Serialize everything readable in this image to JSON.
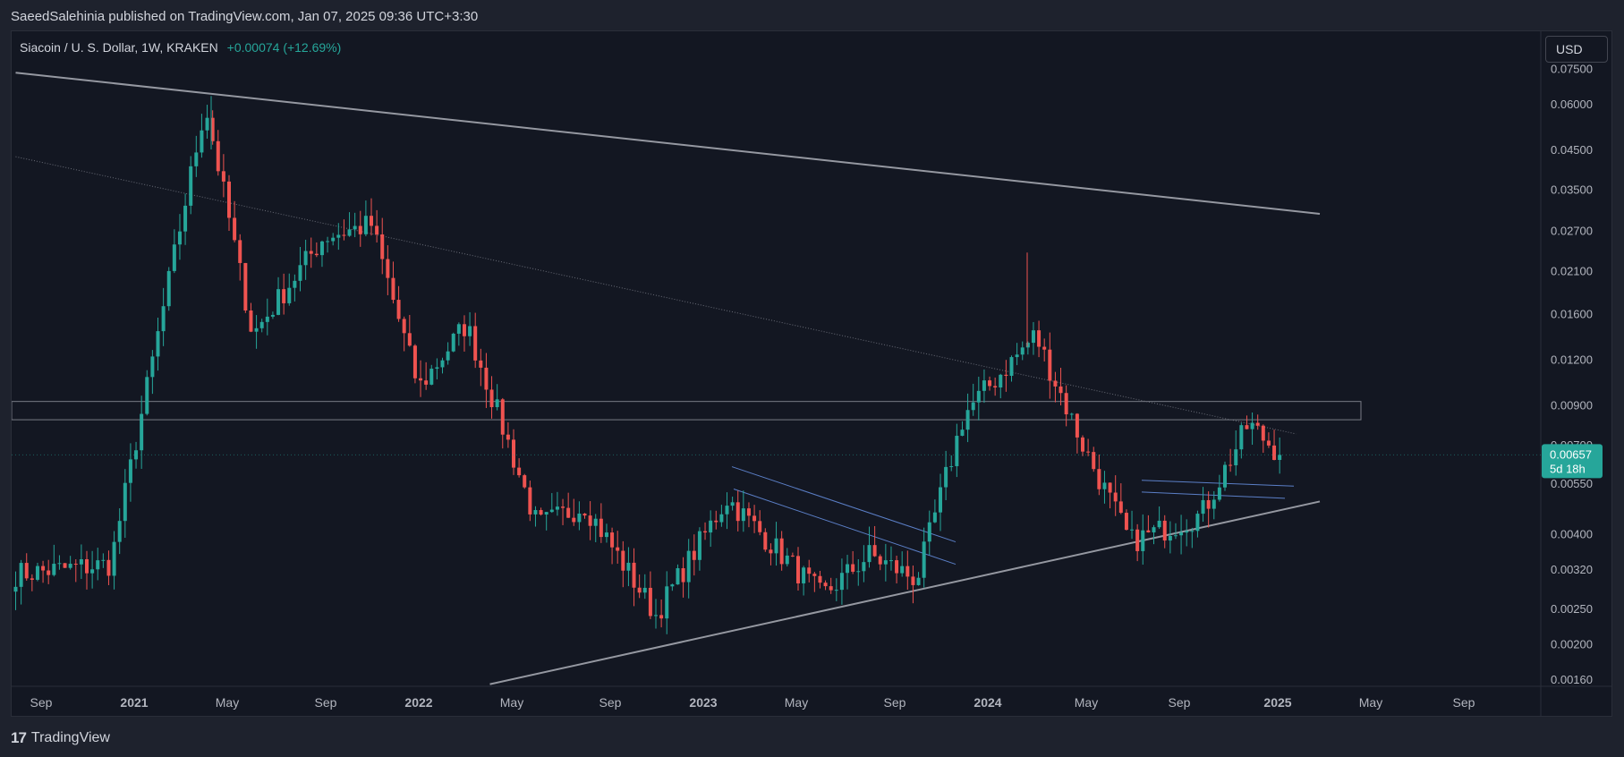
{
  "header": {
    "published_by": "SaeedSalehinia published on TradingView.com, Jan 07, 2025 09:36 UTC+3:30"
  },
  "legend": {
    "symbol": "Siacoin / U. S. Dollar, 1W, KRAKEN",
    "change": "+0.00074 (+12.69%)"
  },
  "price_scale": {
    "currency": "USD"
  },
  "price_tag": {
    "price": "0.00657",
    "countdown": "5d 18h"
  },
  "footer": {
    "brand": "TradingView"
  },
  "colors": {
    "up": "#26a69a",
    "down": "#ef5350",
    "background": "#131722",
    "trendline": "#9598a1",
    "channel": "#5b7fc7"
  },
  "chart_data": {
    "type": "candlestick",
    "scale": "log",
    "ylim": [
      0.0015,
      0.08
    ],
    "y_ticks": [
      "0.07500",
      "0.06000",
      "0.04500",
      "0.03500",
      "0.02700",
      "0.02100",
      "0.01600",
      "0.01200",
      "0.00900",
      "0.00700",
      "0.00550",
      "0.00400",
      "0.00320",
      "0.00250",
      "0.00200",
      "0.00160"
    ],
    "x_ticks": [
      "Sep",
      "2021",
      "May",
      "Sep",
      "2022",
      "May",
      "Sep",
      "2023",
      "May",
      "Sep",
      "2024",
      "May",
      "Sep",
      "2025",
      "May",
      "Sep"
    ],
    "last_price": 0.00657,
    "key_points": [
      {
        "date": "2020-08",
        "price": 0.0031
      },
      {
        "date": "2020-12",
        "price": 0.0033
      },
      {
        "date": "2021-02",
        "price": 0.014
      },
      {
        "date": "2021-04",
        "price": 0.06
      },
      {
        "date": "2021-06",
        "price": 0.014
      },
      {
        "date": "2021-09",
        "price": 0.026
      },
      {
        "date": "2021-11",
        "price": 0.028
      },
      {
        "date": "2022-01",
        "price": 0.01
      },
      {
        "date": "2022-03",
        "price": 0.015
      },
      {
        "date": "2022-06",
        "price": 0.0042
      },
      {
        "date": "2022-08",
        "price": 0.0048
      },
      {
        "date": "2022-11",
        "price": 0.0024
      },
      {
        "date": "2023-02",
        "price": 0.005
      },
      {
        "date": "2023-06",
        "price": 0.0027
      },
      {
        "date": "2023-08",
        "price": 0.0035
      },
      {
        "date": "2023-10",
        "price": 0.003
      },
      {
        "date": "2023-12",
        "price": 0.0085
      },
      {
        "date": "2024-03",
        "price": 0.014
      },
      {
        "date": "2024-05",
        "price": 0.007
      },
      {
        "date": "2024-07",
        "price": 0.0038
      },
      {
        "date": "2024-10",
        "price": 0.0045
      },
      {
        "date": "2024-12",
        "price": 0.008
      },
      {
        "date": "2025-01",
        "price": 0.00657
      }
    ],
    "drawings": {
      "upper_trendline": [
        {
          "date": "2020-08",
          "price": 0.073
        },
        {
          "date": "2025-03",
          "price": 0.03
        }
      ],
      "dotted_trendline": [
        {
          "date": "2020-08",
          "price": 0.043
        },
        {
          "date": "2025-02",
          "price": 0.0075
        }
      ],
      "support_trendline": [
        {
          "date": "2022-04",
          "price": 0.00155
        },
        {
          "date": "2025-03",
          "price": 0.0049
        }
      ],
      "horizontal_zone": [
        0.0082,
        0.0092
      ]
    }
  }
}
